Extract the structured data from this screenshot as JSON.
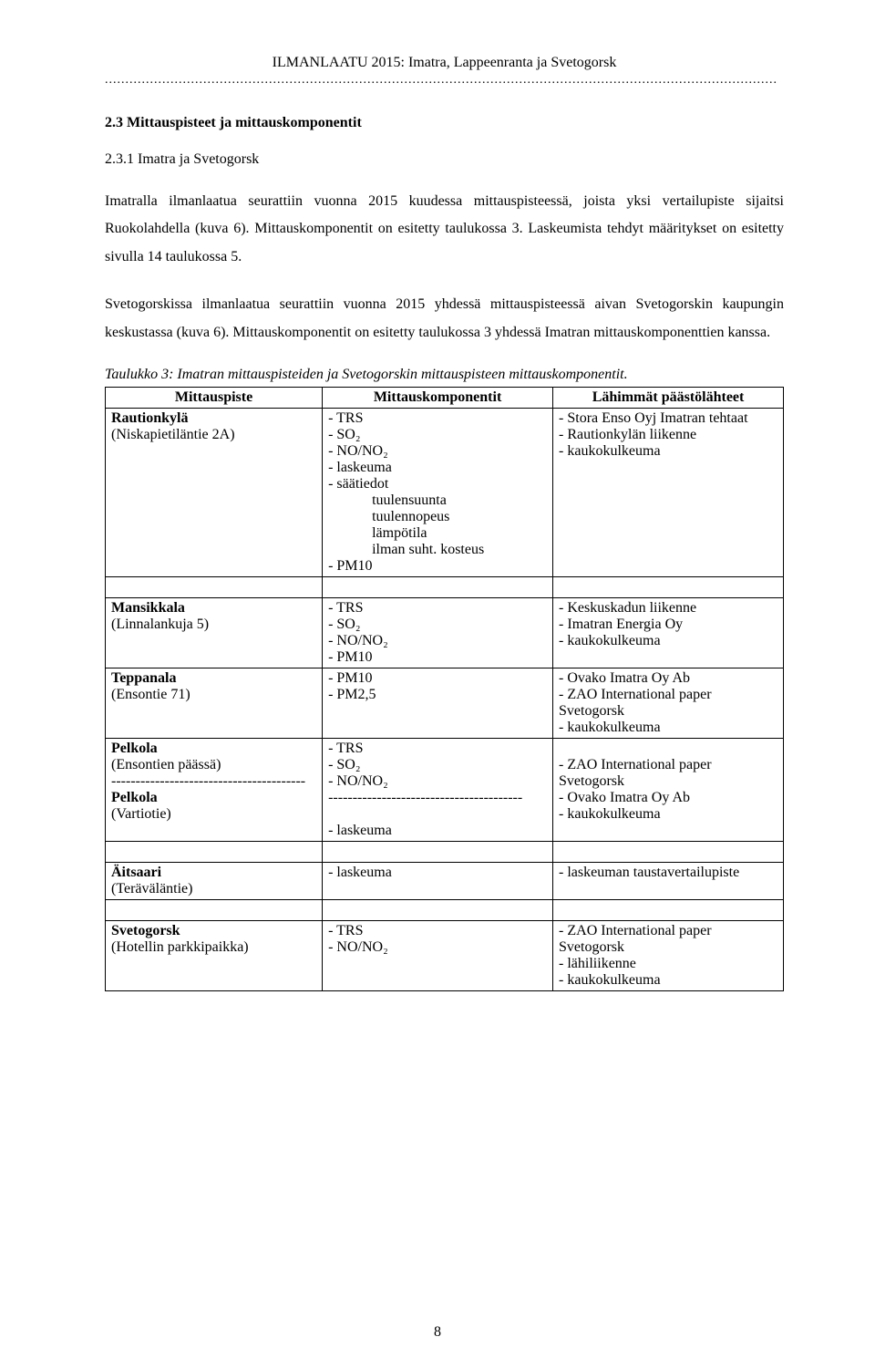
{
  "header": "ILMANLAATU 2015: Imatra, Lappeenranta ja Svetogorsk",
  "divider": "....................................................................................................................................................................",
  "section_heading": "2.3 Mittauspisteet ja mittauskomponentit",
  "subsection_heading": "2.3.1 Imatra ja Svetogorsk",
  "para1": "Imatralla ilmanlaatua seurattiin vuonna 2015 kuudessa mittauspisteessä, joista yksi vertailupiste sijaitsi Ruokolahdella (kuva 6). Mittauskomponentit on esitetty taulukossa 3. Laskeumista tehdyt määritykset on esitetty sivulla 14 taulukossa 5.",
  "para2": "Svetogorskissa ilmanlaatua seurattiin vuonna 2015 yhdessä mittauspisteessä aivan Svetogorskin kaupungin keskustassa (kuva 6). Mittauskomponentit on esitetty taulukossa 3 yhdessä Imatran mittauskomponenttien kanssa.",
  "table_caption": "Taulukko 3: Imatran mittauspisteiden ja Svetogorskin mittauspisteen mittauskomponentit.",
  "table": {
    "headers": [
      "Mittauspiste",
      "Mittauskomponentit",
      "Lähimmät päästölähteet"
    ],
    "rows": [
      {
        "point_bold": "Rautionkylä",
        "point_rest": "(Niskapietiläntie 2A)",
        "components": [
          "- TRS",
          "- SO₂",
          "- NO/NO₂",
          "- laskeuma",
          "- säätiedot"
        ],
        "components_indented": [
          "tuulensuunta",
          "tuulennopeus",
          "lämpötila",
          "ilman suht. kosteus"
        ],
        "components2": [
          "- PM10"
        ],
        "sources": [
          "- Stora Enso Oyj Imatran tehtaat",
          "- Rautionkylän liikenne",
          "- kaukokulkeuma"
        ]
      },
      {
        "spacer": true
      },
      {
        "point_bold": "Mansikkala",
        "point_rest": "(Linnalankuja 5)",
        "components": [
          "- TRS",
          "- SO₂",
          "- NO/NO₂",
          "- PM10"
        ],
        "sources": [
          "- Keskuskadun liikenne",
          "- Imatran Energia Oy",
          "- kaukokulkeuma"
        ]
      },
      {
        "point_bold": "Teppanala",
        "point_rest": "(Ensontie 71)",
        "components": [
          "- PM10",
          "- PM2,5"
        ],
        "sources": [
          "- Ovako Imatra Oy Ab",
          "- ZAO International paper",
          "Svetogorsk",
          "- kaukokulkeuma"
        ]
      },
      {
        "point_bold": "Pelkola",
        "point_rest": "(Ensontien päässä)",
        "point_sep": "----------------------------------------",
        "point_bold2": "Pelkola",
        "point_rest2": "(Vartiotie)",
        "components": [
          "- TRS",
          "- SO₂",
          "- NO/NO₂"
        ],
        "components_sep": "----------------------------------------",
        "components2": [
          "",
          "- laskeuma"
        ],
        "sources": [
          "",
          "- ZAO International paper",
          "Svetogorsk",
          "- Ovako Imatra Oy Ab",
          "- kaukokulkeuma"
        ]
      },
      {
        "spacer": true
      },
      {
        "point_bold": "Äitsaari",
        "point_rest": "(Teräväläntie)",
        "components": [
          "- laskeuma"
        ],
        "sources": [
          "- laskeuman taustavertailupiste"
        ]
      },
      {
        "spacer": true
      },
      {
        "point_bold": "Svetogorsk",
        "point_rest": "(Hotellin parkkipaikka)",
        "components": [
          "- TRS",
          "- NO/NO₂"
        ],
        "sources": [
          "- ZAO International paper",
          "Svetogorsk",
          "- lähiliikenne",
          "- kaukokulkeuma"
        ]
      }
    ]
  },
  "page_number": "8"
}
